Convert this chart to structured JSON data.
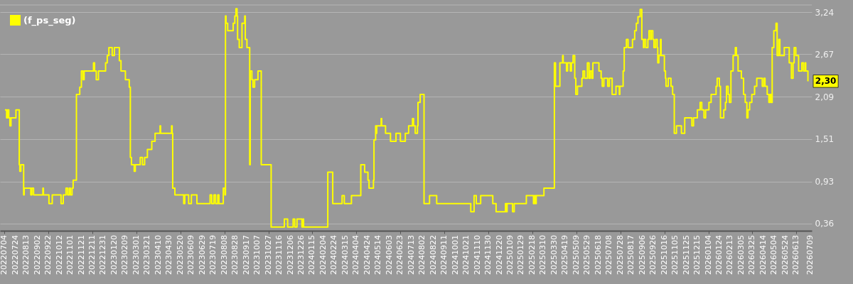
{
  "chart_data": {
    "type": "step",
    "legend": "top left",
    "grid": "y",
    "line_style": "solid",
    "xlim": [
      "2022-06-26",
      "2026-07-11"
    ],
    "ylim": [
      0.26,
      3.34
    ],
    "yticks": [
      {
        "value": 0.36,
        "label": "0,36"
      },
      {
        "value": 0.93,
        "label": "0,93"
      },
      {
        "value": 1.51,
        "label": "1,51"
      },
      {
        "value": 2.09,
        "label": "2,09"
      },
      {
        "value": 2.67,
        "label": "2,67"
      },
      {
        "value": 3.24,
        "label": "3,24"
      }
    ],
    "xticks": [
      {
        "value": "2022-07-04",
        "label": "20220704"
      },
      {
        "value": "2022-07-24",
        "label": "20220724"
      },
      {
        "value": "2022-08-13",
        "label": "20220813"
      },
      {
        "value": "2022-09-02",
        "label": "20220902"
      },
      {
        "value": "2022-09-22",
        "label": "20220922"
      },
      {
        "value": "2022-10-12",
        "label": "20221012"
      },
      {
        "value": "2022-11-01",
        "label": "20221101"
      },
      {
        "value": "2022-11-21",
        "label": "20221121"
      },
      {
        "value": "2022-12-11",
        "label": "20221211"
      },
      {
        "value": "2022-12-31",
        "label": "20221231"
      },
      {
        "value": "2023-01-20",
        "label": "20230120"
      },
      {
        "value": "2023-02-09",
        "label": "20230209"
      },
      {
        "value": "2023-03-01",
        "label": "20230301"
      },
      {
        "value": "2023-03-21",
        "label": "20230321"
      },
      {
        "value": "2023-04-10",
        "label": "20230410"
      },
      {
        "value": "2023-04-30",
        "label": "20230430"
      },
      {
        "value": "2023-05-20",
        "label": "20230520"
      },
      {
        "value": "2023-06-09",
        "label": "20230609"
      },
      {
        "value": "2023-06-29",
        "label": "20230629"
      },
      {
        "value": "2023-07-19",
        "label": "20230719"
      },
      {
        "value": "2023-08-08",
        "label": "20230808"
      },
      {
        "value": "2023-08-28",
        "label": "20230828"
      },
      {
        "value": "2023-09-17",
        "label": "20230917"
      },
      {
        "value": "2023-10-07",
        "label": "20231007"
      },
      {
        "value": "2023-10-27",
        "label": "20231027"
      },
      {
        "value": "2023-11-16",
        "label": "20231116"
      },
      {
        "value": "2023-12-06",
        "label": "20231206"
      },
      {
        "value": "2023-12-26",
        "label": "20231226"
      },
      {
        "value": "2024-01-15",
        "label": "20240115"
      },
      {
        "value": "2024-02-04",
        "label": "20240204"
      },
      {
        "value": "2024-02-24",
        "label": "20240224"
      },
      {
        "value": "2024-03-15",
        "label": "20240315"
      },
      {
        "value": "2024-04-04",
        "label": "20240404"
      },
      {
        "value": "2024-04-24",
        "label": "20240424"
      },
      {
        "value": "2024-05-14",
        "label": "20240514"
      },
      {
        "value": "2024-06-03",
        "label": "20240603"
      },
      {
        "value": "2024-06-23",
        "label": "20240623"
      },
      {
        "value": "2024-07-13",
        "label": "20240713"
      },
      {
        "value": "2024-08-02",
        "label": "20240802"
      },
      {
        "value": "2024-08-22",
        "label": "20240822"
      },
      {
        "value": "2024-09-11",
        "label": "20240911"
      },
      {
        "value": "2024-10-01",
        "label": "20241001"
      },
      {
        "value": "2024-10-21",
        "label": "20241021"
      },
      {
        "value": "2024-11-10",
        "label": "20241110"
      },
      {
        "value": "2024-11-30",
        "label": "20241130"
      },
      {
        "value": "2024-12-20",
        "label": "20241220"
      },
      {
        "value": "2025-01-09",
        "label": "20250109"
      },
      {
        "value": "2025-01-29",
        "label": "20250129"
      },
      {
        "value": "2025-02-18",
        "label": "20250218"
      },
      {
        "value": "2025-03-10",
        "label": "20250310"
      },
      {
        "value": "2025-03-30",
        "label": "20250330"
      },
      {
        "value": "2025-04-19",
        "label": "20250419"
      },
      {
        "value": "2025-05-09",
        "label": "20250509"
      },
      {
        "value": "2025-05-29",
        "label": "20250529"
      },
      {
        "value": "2025-06-18",
        "label": "20250618"
      },
      {
        "value": "2025-07-08",
        "label": "20250708"
      },
      {
        "value": "2025-07-28",
        "label": "20250728"
      },
      {
        "value": "2025-08-17",
        "label": "20250817"
      },
      {
        "value": "2025-09-06",
        "label": "20250906"
      },
      {
        "value": "2025-09-26",
        "label": "20250926"
      },
      {
        "value": "2025-10-16",
        "label": "20251016"
      },
      {
        "value": "2025-11-05",
        "label": "20251105"
      },
      {
        "value": "2025-11-25",
        "label": "20251125"
      },
      {
        "value": "2025-12-15",
        "label": "20251215"
      },
      {
        "value": "2026-01-04",
        "label": "20260104"
      },
      {
        "value": "2026-01-24",
        "label": "20260124"
      },
      {
        "value": "2026-02-13",
        "label": "20260213"
      },
      {
        "value": "2026-03-05",
        "label": "20260305"
      },
      {
        "value": "2026-03-25",
        "label": "20260325"
      },
      {
        "value": "2026-04-14",
        "label": "20260414"
      },
      {
        "value": "2026-05-04",
        "label": "20260504"
      },
      {
        "value": "2026-05-24",
        "label": "20260524"
      },
      {
        "value": "2026-06-13",
        "label": "20260613"
      },
      {
        "value": "2026-07-09",
        "label": "20260709"
      }
    ],
    "annotations": [
      {
        "text": "2,30",
        "x": "2026-07-04",
        "y": 2.3
      }
    ],
    "series": [
      {
        "name": "(f_ps_seg)",
        "color": "#ffff00",
        "x": [
          "2022-07-05",
          "2022-07-08",
          "2022-07-10",
          "2022-07-12",
          "2022-07-14",
          "2022-07-16",
          "2022-07-25",
          "2022-07-31",
          "2022-08-01",
          "2022-08-03",
          "2022-08-08",
          "2022-08-09",
          "2022-08-21",
          "2022-08-23",
          "2022-08-26",
          "2022-09-12",
          "2022-09-13",
          "2022-09-23",
          "2022-09-29",
          "2022-10-15",
          "2022-10-19",
          "2022-10-24",
          "2022-10-27",
          "2022-10-30",
          "2022-11-01",
          "2022-11-04",
          "2022-11-06",
          "2022-11-12",
          "2022-11-18",
          "2022-11-21",
          "2022-11-24",
          "2022-11-26",
          "2022-12-13",
          "2022-12-15",
          "2022-12-18",
          "2022-12-22",
          "2023-01-04",
          "2023-01-07",
          "2023-01-10",
          "2023-01-16",
          "2023-01-20",
          "2023-01-29",
          "2023-02-01",
          "2023-02-09",
          "2023-02-16",
          "2023-02-18",
          "2023-02-20",
          "2023-02-25",
          "2023-02-27",
          "2023-03-08",
          "2023-03-12",
          "2023-03-16",
          "2023-03-21",
          "2023-03-29",
          "2023-04-04",
          "2023-04-13",
          "2023-04-14",
          "2023-05-04",
          "2023-05-05",
          "2023-05-06",
          "2023-05-10",
          "2023-05-26",
          "2023-05-28",
          "2023-06-04",
          "2023-06-09",
          "2023-06-19",
          "2023-07-13",
          "2023-07-16",
          "2023-07-20",
          "2023-07-23",
          "2023-07-27",
          "2023-07-29",
          "2023-08-06",
          "2023-08-09",
          "2023-08-10",
          "2023-08-11",
          "2023-08-14",
          "2023-08-24",
          "2023-08-27",
          "2023-08-29",
          "2023-08-31",
          "2023-09-01",
          "2023-09-04",
          "2023-09-09",
          "2023-09-14",
          "2023-09-15",
          "2023-09-18",
          "2023-09-23",
          "2023-09-24",
          "2023-09-27",
          "2023-09-29",
          "2023-10-02",
          "2023-10-08",
          "2023-10-14",
          "2023-11-01",
          "2023-11-25",
          "2023-12-01",
          "2023-12-11",
          "2023-12-14",
          "2023-12-18",
          "2023-12-27",
          "2023-12-29",
          "2023-12-30",
          "2024-02-12",
          "2024-02-21",
          "2024-03-09",
          "2024-03-13",
          "2024-03-26",
          "2024-04-12",
          "2024-04-19",
          "2024-04-25",
          "2024-04-27",
          "2024-05-05",
          "2024-05-06",
          "2024-05-09",
          "2024-05-10",
          "2024-05-11",
          "2024-05-19",
          "2024-05-20",
          "2024-05-27",
          "2024-06-05",
          "2024-06-15",
          "2024-06-23",
          "2024-07-02",
          "2024-07-08",
          "2024-07-15",
          "2024-07-17",
          "2024-07-20",
          "2024-07-24",
          "2024-07-25",
          "2024-07-29",
          "2024-08-05",
          "2024-08-15",
          "2024-08-28",
          "2024-10-29",
          "2024-11-04",
          "2024-11-08",
          "2024-11-16",
          "2024-12-08",
          "2024-12-14",
          "2024-12-31",
          "2025-01-02",
          "2025-01-03",
          "2025-01-13",
          "2025-01-16",
          "2025-02-07",
          "2025-02-20",
          "2025-02-22",
          "2025-02-24",
          "2025-02-25",
          "2025-03-11",
          "2025-03-30",
          "2025-04-01",
          "2025-04-09",
          "2025-04-14",
          "2025-04-15",
          "2025-04-21",
          "2025-04-23",
          "2025-04-28",
          "2025-04-30",
          "2025-05-03",
          "2025-05-06",
          "2025-05-08",
          "2025-05-11",
          "2025-05-19",
          "2025-05-21",
          "2025-05-24",
          "2025-05-29",
          "2025-06-01",
          "2025-06-03",
          "2025-06-06",
          "2025-06-08",
          "2025-06-19",
          "2025-06-23",
          "2025-06-25",
          "2025-06-28",
          "2025-07-05",
          "2025-07-08",
          "2025-07-13",
          "2025-07-20",
          "2025-07-26",
          "2025-07-27",
          "2025-08-02",
          "2025-08-04",
          "2025-08-08",
          "2025-08-11",
          "2025-08-19",
          "2025-08-23",
          "2025-08-26",
          "2025-08-29",
          "2025-09-02",
          "2025-09-05",
          "2025-09-08",
          "2025-09-09",
          "2025-09-12",
          "2025-09-16",
          "2025-09-18",
          "2025-09-21",
          "2025-09-22",
          "2025-09-25",
          "2025-09-27",
          "2025-09-30",
          "2025-10-03",
          "2025-10-04",
          "2025-10-06",
          "2025-10-09",
          "2025-10-10",
          "2025-10-16",
          "2025-10-18",
          "2025-10-19",
          "2025-10-23",
          "2025-10-28",
          "2025-10-31",
          "2025-11-03",
          "2025-11-07",
          "2025-11-16",
          "2025-11-22",
          "2025-12-05",
          "2025-12-08",
          "2025-12-15",
          "2025-12-20",
          "2025-12-23",
          "2025-12-27",
          "2025-12-30",
          "2026-01-05",
          "2026-01-09",
          "2026-01-18",
          "2026-01-20",
          "2026-01-24",
          "2026-01-26",
          "2026-02-01",
          "2026-02-04",
          "2026-02-06",
          "2026-02-09",
          "2026-02-11",
          "2026-02-14",
          "2026-02-18",
          "2026-02-22",
          "2026-02-24",
          "2026-02-27",
          "2026-03-05",
          "2026-03-09",
          "2026-03-12",
          "2026-03-15",
          "2026-03-17",
          "2026-03-20",
          "2026-03-24",
          "2026-03-29",
          "2026-04-02",
          "2026-04-12",
          "2026-04-15",
          "2026-04-17",
          "2026-04-21",
          "2026-04-24",
          "2026-04-26",
          "2026-04-28",
          "2026-04-30",
          "2026-05-03",
          "2026-05-07",
          "2026-05-09",
          "2026-05-12",
          "2026-05-14",
          "2026-05-22",
          "2026-05-31",
          "2026-06-04",
          "2026-06-07",
          "2026-06-09",
          "2026-06-12",
          "2026-06-17",
          "2026-06-23",
          "2026-06-26",
          "2026-06-29",
          "2026-06-30",
          "2026-07-04"
        ],
        "values": [
          1.91,
          1.8,
          1.91,
          1.8,
          1.69,
          1.8,
          1.91,
          1.16,
          1.07,
          1.16,
          0.75,
          0.84,
          0.75,
          0.84,
          0.75,
          0.84,
          0.75,
          0.63,
          0.75,
          0.63,
          0.75,
          0.84,
          0.75,
          0.84,
          0.75,
          0.84,
          0.95,
          2.12,
          2.22,
          2.44,
          2.32,
          2.44,
          2.55,
          2.44,
          2.32,
          2.44,
          2.55,
          2.65,
          2.76,
          2.65,
          2.76,
          2.58,
          2.44,
          2.32,
          2.22,
          1.26,
          1.16,
          1.07,
          1.16,
          1.26,
          1.16,
          1.26,
          1.37,
          1.48,
          1.59,
          1.69,
          1.59,
          1.69,
          1.59,
          0.84,
          0.75,
          0.63,
          0.75,
          0.63,
          0.75,
          0.63,
          0.75,
          0.63,
          0.75,
          0.63,
          0.75,
          0.63,
          0.84,
          0.75,
          3.19,
          3.09,
          2.99,
          3.09,
          3.19,
          3.29,
          3.19,
          2.87,
          2.76,
          3.09,
          3.19,
          2.87,
          2.76,
          1.16,
          2.44,
          2.32,
          2.22,
          2.32,
          2.44,
          1.16,
          0.31,
          0.42,
          0.31,
          0.42,
          0.31,
          0.42,
          0.31,
          0.42,
          0.31,
          1.06,
          0.63,
          0.74,
          0.63,
          0.74,
          1.16,
          1.06,
          0.95,
          0.84,
          0.95,
          1.5,
          1.69,
          1.59,
          1.69,
          1.79,
          1.69,
          1.59,
          1.48,
          1.59,
          1.48,
          1.59,
          1.69,
          1.79,
          1.69,
          1.59,
          1.69,
          2.01,
          2.12,
          0.63,
          0.74,
          0.63,
          0.52,
          0.74,
          0.63,
          0.74,
          0.63,
          0.52,
          0.63,
          0.52,
          0.63,
          0.52,
          0.63,
          0.74,
          0.63,
          0.74,
          0.63,
          0.74,
          0.84,
          2.55,
          2.23,
          2.55,
          2.65,
          2.55,
          2.44,
          2.55,
          2.44,
          2.55,
          2.65,
          2.34,
          2.12,
          2.23,
          2.34,
          2.44,
          2.34,
          2.55,
          2.34,
          2.44,
          2.34,
          2.55,
          2.44,
          2.34,
          2.23,
          2.34,
          2.23,
          2.34,
          2.12,
          2.23,
          2.12,
          2.23,
          2.44,
          2.76,
          2.87,
          2.76,
          2.87,
          2.99,
          3.09,
          3.18,
          3.28,
          2.87,
          2.76,
          2.87,
          2.76,
          2.87,
          2.99,
          2.87,
          2.99,
          2.87,
          2.76,
          2.87,
          2.76,
          2.55,
          2.65,
          2.87,
          2.65,
          2.44,
          2.34,
          2.23,
          2.34,
          2.23,
          2.12,
          1.59,
          1.69,
          1.59,
          1.8,
          1.69,
          1.8,
          1.91,
          2.01,
          1.91,
          1.8,
          1.91,
          2.01,
          2.12,
          2.23,
          2.34,
          2.23,
          1.8,
          1.91,
          2.01,
          2.23,
          2.12,
          2.01,
          2.44,
          2.65,
          2.76,
          2.65,
          2.44,
          2.34,
          2.12,
          2.01,
          1.8,
          1.91,
          2.01,
          2.12,
          2.23,
          2.34,
          2.23,
          2.34,
          2.23,
          2.12,
          2.01,
          2.12,
          2.01,
          2.76,
          2.99,
          3.09,
          2.65,
          2.87,
          2.65,
          2.76,
          2.55,
          2.34,
          2.55,
          2.76,
          2.65,
          2.44,
          2.55,
          2.44,
          2.55,
          2.44,
          2.3
        ]
      }
    ]
  }
}
